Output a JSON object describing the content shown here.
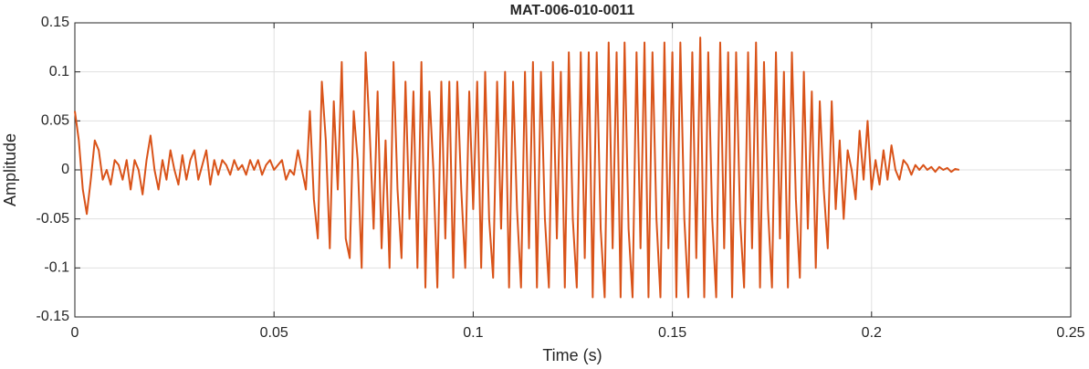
{
  "chart_data": {
    "type": "line",
    "title": "MAT-006-010-0011",
    "x_label": "Time (s)",
    "y_label": "Amplitude",
    "xlim": [
      0,
      0.25
    ],
    "ylim": [
      -0.15,
      0.15
    ],
    "xticks": [
      0,
      0.05,
      0.1,
      0.15,
      0.2,
      0.25
    ],
    "yticks": [
      -0.15,
      -0.1,
      -0.05,
      0,
      0.05,
      0.1,
      0.15
    ],
    "grid": true,
    "x": [
      0,
      0.001,
      0.002,
      0.003,
      0.004,
      0.005,
      0.006,
      0.007,
      0.008,
      0.009,
      0.01,
      0.011,
      0.012,
      0.013,
      0.014,
      0.015,
      0.016,
      0.017,
      0.018,
      0.019,
      0.02,
      0.021,
      0.022,
      0.023,
      0.024,
      0.025,
      0.026,
      0.027,
      0.028,
      0.029,
      0.03,
      0.031,
      0.032,
      0.033,
      0.034,
      0.035,
      0.036,
      0.037,
      0.038,
      0.039,
      0.04,
      0.041,
      0.042,
      0.043,
      0.044,
      0.045,
      0.046,
      0.047,
      0.048,
      0.049,
      0.05,
      0.051,
      0.052,
      0.053,
      0.054,
      0.055,
      0.056,
      0.057,
      0.058,
      0.059,
      0.06,
      0.061,
      0.062,
      0.063,
      0.064,
      0.065,
      0.066,
      0.067,
      0.068,
      0.069,
      0.07,
      0.071,
      0.072,
      0.073,
      0.074,
      0.075,
      0.076,
      0.077,
      0.078,
      0.079,
      0.08,
      0.081,
      0.082,
      0.083,
      0.084,
      0.085,
      0.086,
      0.087,
      0.088,
      0.089,
      0.09,
      0.091,
      0.092,
      0.093,
      0.094,
      0.095,
      0.096,
      0.097,
      0.098,
      0.099,
      0.1,
      0.101,
      0.102,
      0.103,
      0.104,
      0.105,
      0.106,
      0.107,
      0.108,
      0.109,
      0.11,
      0.111,
      0.112,
      0.113,
      0.114,
      0.115,
      0.116,
      0.117,
      0.118,
      0.119,
      0.12,
      0.121,
      0.122,
      0.123,
      0.124,
      0.125,
      0.126,
      0.127,
      0.128,
      0.129,
      0.13,
      0.131,
      0.132,
      0.133,
      0.134,
      0.135,
      0.136,
      0.137,
      0.138,
      0.139,
      0.14,
      0.141,
      0.142,
      0.143,
      0.144,
      0.145,
      0.146,
      0.147,
      0.148,
      0.149,
      0.15,
      0.151,
      0.152,
      0.153,
      0.154,
      0.155,
      0.156,
      0.157,
      0.158,
      0.159,
      0.16,
      0.161,
      0.162,
      0.163,
      0.164,
      0.165,
      0.166,
      0.167,
      0.168,
      0.169,
      0.17,
      0.171,
      0.172,
      0.173,
      0.174,
      0.175,
      0.176,
      0.177,
      0.178,
      0.179,
      0.18,
      0.181,
      0.182,
      0.183,
      0.184,
      0.185,
      0.186,
      0.187,
      0.188,
      0.189,
      0.19,
      0.191,
      0.192,
      0.193,
      0.194,
      0.195,
      0.196,
      0.197,
      0.198,
      0.199,
      0.2,
      0.201,
      0.202,
      0.203,
      0.204,
      0.205,
      0.206,
      0.207,
      0.208,
      0.209,
      0.21,
      0.211,
      0.212,
      0.213,
      0.214,
      0.215,
      0.216,
      0.217,
      0.218,
      0.219,
      0.22,
      0.221,
      0.222
    ],
    "series": [
      {
        "color": "#d95319",
        "values": [
          0.06,
          0.03,
          -0.02,
          -0.045,
          -0.01,
          0.03,
          0.02,
          -0.01,
          0.0,
          -0.015,
          0.01,
          0.005,
          -0.01,
          0.01,
          -0.02,
          0.01,
          0.0,
          -0.025,
          0.01,
          0.035,
          0.0,
          -0.02,
          0.01,
          -0.01,
          0.02,
          0.0,
          -0.015,
          0.015,
          -0.01,
          0.01,
          0.02,
          -0.01,
          0.005,
          0.02,
          -0.015,
          0.01,
          -0.005,
          0.01,
          0.005,
          -0.005,
          0.01,
          0.0,
          0.005,
          -0.005,
          0.01,
          0.0,
          0.01,
          -0.005,
          0.005,
          0.01,
          0.0,
          0.005,
          0.01,
          -0.01,
          0.0,
          -0.005,
          0.02,
          0.0,
          -0.02,
          0.06,
          -0.03,
          -0.07,
          0.09,
          0.03,
          -0.08,
          0.07,
          -0.02,
          0.11,
          -0.07,
          -0.09,
          0.06,
          0.01,
          -0.1,
          0.12,
          0.04,
          -0.06,
          0.08,
          -0.08,
          0.03,
          -0.1,
          0.11,
          -0.02,
          -0.09,
          0.09,
          -0.05,
          0.08,
          -0.1,
          0.11,
          -0.12,
          0.08,
          0.0,
          -0.12,
          0.09,
          -0.07,
          0.09,
          -0.11,
          0.09,
          -0.02,
          -0.1,
          0.08,
          -0.04,
          0.09,
          -0.1,
          0.1,
          -0.05,
          -0.11,
          0.09,
          -0.06,
          0.1,
          -0.12,
          0.09,
          -0.04,
          -0.12,
          0.1,
          -0.08,
          0.11,
          -0.12,
          0.1,
          -0.05,
          -0.12,
          0.11,
          -0.07,
          0.1,
          -0.12,
          0.12,
          -0.05,
          -0.12,
          0.12,
          -0.09,
          0.12,
          -0.13,
          0.12,
          -0.06,
          -0.13,
          0.13,
          -0.08,
          0.12,
          -0.13,
          0.13,
          -0.06,
          -0.13,
          0.12,
          -0.08,
          0.13,
          -0.13,
          0.12,
          -0.05,
          -0.13,
          0.13,
          -0.08,
          0.12,
          -0.13,
          0.13,
          -0.05,
          -0.13,
          0.12,
          -0.09,
          0.135,
          -0.13,
          0.12,
          -0.05,
          -0.13,
          0.13,
          -0.08,
          0.12,
          -0.13,
          0.12,
          -0.05,
          -0.12,
          0.12,
          -0.08,
          0.13,
          -0.12,
          0.11,
          -0.04,
          -0.12,
          0.12,
          -0.07,
          0.1,
          -0.12,
          0.12,
          -0.03,
          -0.11,
          0.1,
          -0.06,
          0.08,
          -0.1,
          0.07,
          -0.02,
          -0.08,
          0.07,
          -0.04,
          0.03,
          -0.05,
          0.02,
          0.0,
          -0.03,
          0.04,
          -0.01,
          0.05,
          -0.02,
          0.01,
          -0.015,
          0.02,
          -0.01,
          0.025,
          0.0,
          -0.01,
          0.01,
          0.005,
          -0.005,
          0.005,
          0.0,
          0.005,
          0.0,
          0.003,
          -0.002,
          0.003,
          0.0,
          0.002,
          -0.002,
          0.001,
          0.0
        ]
      }
    ]
  }
}
